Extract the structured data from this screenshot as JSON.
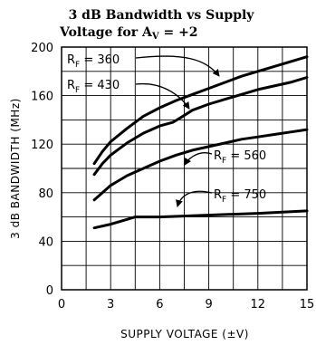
{
  "chart_data": {
    "type": "line",
    "title_line1": "3 dB Bandwidth vs Supply",
    "title_line2": "Voltage for A",
    "title_sub": "V",
    "title_tail": " =  +2",
    "xlabel": "SUPPLY VOLTAGE (±V)",
    "ylabel": "3 dB BANDWIDTH (MHz)",
    "xlim": [
      0,
      15
    ],
    "ylim": [
      0,
      200
    ],
    "xticks": [
      0,
      3,
      6,
      9,
      12,
      15
    ],
    "yticks": [
      0,
      40,
      80,
      120,
      160,
      200
    ],
    "grid": true,
    "series": [
      {
        "name": "R_F = 360",
        "label_main": "R",
        "label_sub": "F",
        "label_value": " = 360",
        "x": [
          2,
          2.5,
          3,
          4,
          5,
          6,
          7,
          8,
          9,
          10,
          11,
          12,
          13,
          14,
          15
        ],
        "y": [
          104,
          114,
          122,
          133,
          143,
          150,
          156,
          161,
          166,
          171,
          176,
          180,
          184,
          188,
          192
        ]
      },
      {
        "name": "R_F = 430",
        "label_main": "R",
        "label_sub": "F",
        "label_value": " = 430",
        "x": [
          2,
          2.5,
          3,
          4,
          5,
          6,
          6.8,
          7.3,
          8,
          9,
          10,
          11,
          12,
          13,
          14,
          15
        ],
        "y": [
          95,
          104,
          111,
          121,
          129,
          135,
          138,
          142,
          148,
          153,
          157,
          161,
          165,
          168,
          171,
          175
        ]
      },
      {
        "name": "R_F = 560",
        "label_main": "R",
        "label_sub": "F",
        "label_value": " = 560",
        "x": [
          2,
          2.5,
          3,
          4,
          5,
          6,
          7,
          8,
          9,
          10,
          11,
          12,
          13,
          14,
          15
        ],
        "y": [
          74,
          80,
          86,
          94,
          100,
          106,
          111,
          115,
          118,
          121,
          124,
          126,
          128,
          130,
          132
        ]
      },
      {
        "name": "R_F = 750",
        "label_main": "R",
        "label_sub": "F",
        "label_value": " = 750",
        "x": [
          2,
          3,
          4,
          4.5,
          6,
          8,
          10,
          12,
          15
        ],
        "y": [
          51,
          54,
          58,
          60,
          60,
          61,
          62,
          63,
          65
        ]
      }
    ]
  }
}
